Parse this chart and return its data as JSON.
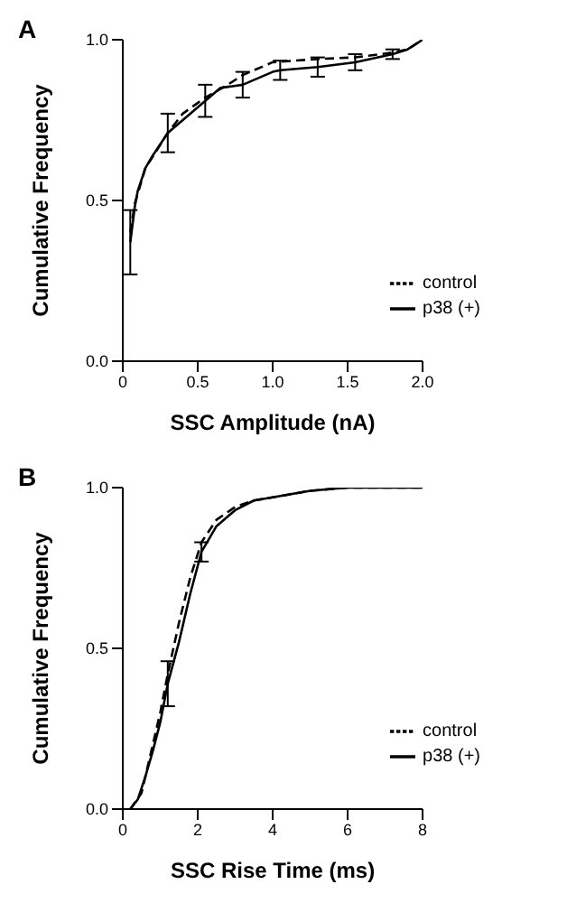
{
  "chart_data": [
    {
      "type": "line",
      "title": "A",
      "xlabel": "SSC Amplitude (nA)",
      "ylabel": "Cumulative Frequency",
      "xlim": [
        0,
        2
      ],
      "xticks": [
        {
          "value": 0,
          "label": "0"
        },
        {
          "value": 0.5,
          "label": "0.5"
        },
        {
          "value": 1,
          "label": "1.0"
        },
        {
          "value": 1.5,
          "label": "1.5"
        },
        {
          "value": 2,
          "label": "2.0"
        }
      ],
      "ylim": [
        0,
        1
      ],
      "yticks": [
        {
          "value": 0,
          "label": "0.0"
        },
        {
          "value": 0.5,
          "label": "0.5"
        },
        {
          "value": 1,
          "label": "1.0"
        }
      ],
      "grid": false,
      "legend": "bottom right",
      "marker": "none",
      "series": [
        {
          "name": "p38 (+)",
          "color": "#000000",
          "line_style": "solid",
          "x": [
            0.05,
            0.08,
            0.1,
            0.15,
            0.2,
            0.3,
            0.4,
            0.55,
            0.65,
            0.8,
            1.0,
            1.05,
            1.3,
            1.55,
            1.8,
            1.9,
            2.0
          ],
          "values": [
            0.37,
            0.48,
            0.53,
            0.6,
            0.64,
            0.71,
            0.75,
            0.81,
            0.85,
            0.86,
            0.9,
            0.905,
            0.915,
            0.93,
            0.955,
            0.97,
            1.0
          ],
          "errors": [
            0.1,
            null,
            null,
            null,
            null,
            0.06,
            null,
            0.05,
            null,
            0.04,
            null,
            0.03,
            0.03,
            0.025,
            0.015,
            null,
            null
          ]
        },
        {
          "name": "control",
          "color": "#000000",
          "line_style": "dashed",
          "x": [
            0.05,
            0.08,
            0.15,
            0.3,
            0.4,
            0.55,
            0.7,
            0.8,
            1.0,
            1.3,
            1.55,
            1.8,
            1.9,
            2.0
          ],
          "values": [
            0.4,
            0.49,
            0.6,
            0.71,
            0.77,
            0.82,
            0.86,
            0.89,
            0.93,
            0.94,
            0.945,
            0.96,
            0.97,
            1.0
          ]
        }
      ]
    },
    {
      "type": "line",
      "title": "B",
      "xlabel": "SSC Rise Time (ms)",
      "ylabel": "Cumulative Frequency",
      "xlim": [
        0,
        8
      ],
      "xticks": [
        0,
        2,
        4,
        6,
        8
      ],
      "ylim": [
        0,
        1
      ],
      "yticks": [
        {
          "value": 0,
          "label": "0.0"
        },
        {
          "value": 0.5,
          "label": "0.5"
        },
        {
          "value": 1,
          "label": "1.0"
        }
      ],
      "grid": false,
      "legend": "bottom right",
      "marker": "none",
      "series": [
        {
          "name": "p38 (+)",
          "color": "#000000",
          "line_style": "solid",
          "x": [
            0.2,
            0.4,
            0.6,
            0.8,
            1.0,
            1.2,
            1.5,
            1.8,
            2.1,
            2.5,
            3,
            3.5,
            4,
            5,
            6,
            8
          ],
          "values": [
            0,
            0.03,
            0.1,
            0.18,
            0.27,
            0.39,
            0.52,
            0.67,
            0.8,
            0.88,
            0.93,
            0.96,
            0.97,
            0.99,
            1.0,
            1.0
          ],
          "errors": [
            null,
            null,
            null,
            null,
            null,
            0.07,
            null,
            null,
            0.03,
            null,
            null,
            null,
            null,
            null,
            null,
            null
          ]
        },
        {
          "name": "control",
          "color": "#000000",
          "line_style": "dashed",
          "x": [
            0.2,
            0.5,
            0.8,
            1.0,
            1.2,
            1.5,
            1.8,
            2.1,
            2.5,
            3,
            3.5,
            4,
            5,
            6,
            8
          ],
          "values": [
            0,
            0.05,
            0.2,
            0.3,
            0.42,
            0.58,
            0.72,
            0.83,
            0.9,
            0.94,
            0.96,
            0.97,
            0.99,
            1.0,
            1.0
          ]
        }
      ]
    }
  ]
}
